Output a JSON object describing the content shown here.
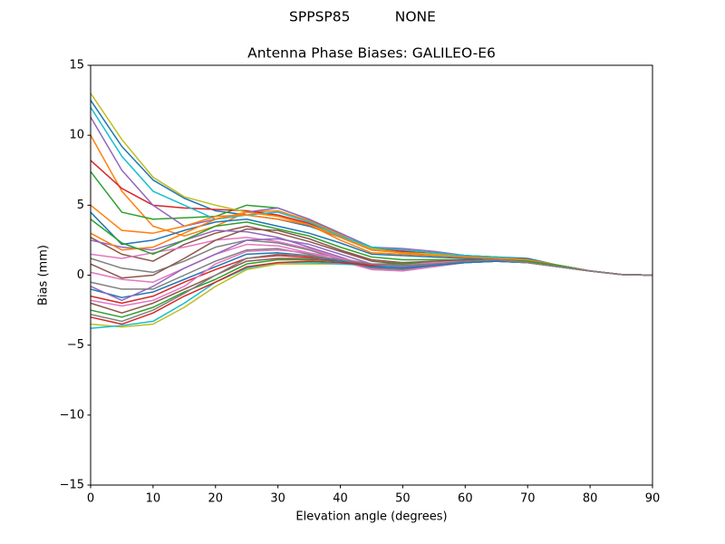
{
  "chart_data": {
    "type": "line",
    "suptitle": "SPPSP85          NONE",
    "title": "Antenna Phase Biases: GALILEO-E6",
    "x_label": "Elevation angle (degrees)",
    "y_label": "Bias (mm)",
    "x": [
      0,
      5,
      10,
      15,
      20,
      25,
      30,
      35,
      40,
      45,
      50,
      55,
      60,
      65,
      70,
      75,
      80,
      85,
      90
    ],
    "xlim": [
      0,
      90
    ],
    "xticks": [
      0,
      10,
      20,
      30,
      40,
      50,
      60,
      70,
      80,
      90
    ],
    "ylim": [
      -15,
      15
    ],
    "yticks": [
      {
        "value": -15,
        "label": "−15"
      },
      {
        "value": -10,
        "label": "−10"
      },
      {
        "value": -5,
        "label": "−5"
      },
      0,
      5,
      10,
      15
    ],
    "grid": false,
    "series": [
      {
        "color": "#1f77b4",
        "values": [
          12.5,
          9.2,
          6.8,
          5.5,
          4.6,
          4.3,
          4,
          3.5,
          2.7,
          1.8,
          1.7,
          1.6,
          1.4,
          1.3,
          1.2,
          0.7,
          0.3,
          0.05,
          0
        ]
      },
      {
        "color": "#ff7f0e",
        "values": [
          10,
          6,
          3.5,
          2.8,
          3.5,
          4.5,
          4.6,
          3.9,
          2.9,
          1.8,
          1.6,
          1.5,
          1.3,
          1.2,
          1.1,
          0.7,
          0.3,
          0.05,
          0
        ]
      },
      {
        "color": "#2ca02c",
        "values": [
          7.4,
          4.5,
          4,
          4.1,
          4.2,
          5,
          4.8,
          4,
          3,
          2,
          1.8,
          1.6,
          1.4,
          1.3,
          1.1,
          0.7,
          0.3,
          0.05,
          0
        ]
      },
      {
        "color": "#d62728",
        "values": [
          8.2,
          6.2,
          5,
          4.8,
          4.7,
          4.6,
          4.3,
          3.7,
          2.8,
          1.9,
          1.7,
          1.6,
          1.4,
          1.2,
          1.1,
          0.7,
          0.3,
          0.05,
          0
        ]
      },
      {
        "color": "#9467bd",
        "values": [
          11.3,
          7.5,
          5,
          3.5,
          4,
          4.5,
          4.8,
          4,
          3,
          2,
          1.9,
          1.7,
          1.4,
          1.2,
          1.1,
          0.7,
          0.3,
          0.05,
          0
        ]
      },
      {
        "color": "#8c564b",
        "values": [
          2.7,
          1.5,
          1,
          2.2,
          3,
          3.5,
          3,
          2.4,
          1.7,
          1,
          0.8,
          0.9,
          1,
          1,
          0.9,
          0.7,
          0.3,
          0.05,
          0
        ]
      },
      {
        "color": "#e377c2",
        "values": [
          1.5,
          1.2,
          1.6,
          2,
          2.5,
          2.7,
          2.4,
          1.9,
          1.2,
          0.6,
          0.5,
          0.7,
          0.9,
          1,
          0.9,
          0.6,
          0.3,
          0.05,
          0
        ]
      },
      {
        "color": "#7f7f7f",
        "values": [
          -0.5,
          -1,
          -1,
          0,
          1,
          1.8,
          1.9,
          1.5,
          1,
          0.5,
          0.4,
          0.7,
          0.9,
          1,
          0.9,
          0.6,
          0.3,
          0.05,
          0
        ]
      },
      {
        "color": "#bcbd22",
        "values": [
          13,
          9.7,
          7,
          5.6,
          5,
          4.5,
          4.2,
          3.6,
          2.8,
          1.9,
          1.6,
          1.5,
          1.3,
          1.2,
          1.1,
          0.7,
          0.3,
          0.05,
          0
        ]
      },
      {
        "color": "#17becf",
        "values": [
          12,
          8.5,
          6,
          5,
          4,
          4.3,
          4.5,
          3.8,
          2.8,
          2,
          1.8,
          1.6,
          1.4,
          1.3,
          1.1,
          0.7,
          0.3,
          0.05,
          0
        ]
      },
      {
        "color": "#1f77b4",
        "values": [
          4.5,
          2.2,
          2.5,
          3.2,
          3.8,
          4,
          3.5,
          3,
          2.3,
          1.5,
          1.4,
          1.3,
          1.2,
          1.1,
          1.0,
          0.7,
          0.3,
          0.05,
          0
        ]
      },
      {
        "color": "#ff7f0e",
        "values": [
          5,
          3.2,
          3,
          3.5,
          4.2,
          4.3,
          4,
          3.6,
          2.7,
          1.8,
          1.6,
          1.4,
          1.3,
          1.2,
          1.1,
          0.7,
          0.3,
          0.05,
          0
        ]
      },
      {
        "color": "#2ca02c",
        "values": [
          -2.5,
          -3,
          -2.3,
          -1.2,
          -0.3,
          0.8,
          1.1,
          1.1,
          1,
          0.8,
          0.8,
          0.9,
          1,
          1.1,
          0.9,
          0.6,
          0.3,
          0.05,
          0
        ]
      },
      {
        "color": "#d62728",
        "values": [
          -1.5,
          -2,
          -1.5,
          -0.5,
          0.4,
          1.2,
          1.4,
          1.3,
          1.1,
          0.7,
          0.6,
          0.8,
          1,
          1.1,
          0.9,
          0.6,
          0.3,
          0.05,
          0
        ]
      },
      {
        "color": "#9467bd",
        "values": [
          2.5,
          2,
          1.8,
          2.5,
          3.2,
          3.1,
          2.7,
          2,
          1.3,
          0.6,
          0.5,
          0.8,
          1,
          1,
          0.9,
          0.6,
          0.3,
          0.05,
          0
        ]
      },
      {
        "color": "#8c564b",
        "values": [
          -2,
          -2.7,
          -2,
          -1,
          0,
          1,
          1.2,
          1.2,
          1,
          0.8,
          0.7,
          0.8,
          1,
          1.1,
          0.9,
          0.6,
          0.3,
          0.05,
          0
        ]
      },
      {
        "color": "#e377c2",
        "values": [
          0.2,
          -0.3,
          -0.5,
          0.5,
          1.5,
          2.2,
          2.1,
          1.6,
          1,
          0.4,
          0.3,
          0.6,
          0.9,
          1,
          0.9,
          0.6,
          0.3,
          0.05,
          0
        ]
      },
      {
        "color": "#7f7f7f",
        "values": [
          1.2,
          0.5,
          0.2,
          1,
          2,
          2.5,
          2.3,
          1.8,
          1.1,
          0.5,
          0.4,
          0.7,
          0.9,
          1,
          0.9,
          0.6,
          0.3,
          0.05,
          0
        ]
      },
      {
        "color": "#bcbd22",
        "values": [
          -3.5,
          -3.7,
          -3.5,
          -2.3,
          -0.8,
          0.4,
          0.8,
          0.8,
          0.8,
          0.7,
          0.7,
          0.8,
          0.9,
          1,
          0.9,
          0.6,
          0.3,
          0.05,
          0
        ]
      },
      {
        "color": "#17becf",
        "values": [
          -3.8,
          -3.6,
          -3.3,
          -2,
          -0.5,
          0.5,
          0.9,
          0.9,
          0.8,
          0.7,
          0.6,
          0.8,
          0.9,
          1,
          0.9,
          0.6,
          0.3,
          0.05,
          0
        ]
      },
      {
        "color": "#1f77b4",
        "values": [
          -1,
          -1.6,
          -1.2,
          -0.3,
          0.6,
          1.5,
          1.6,
          1.4,
          1,
          0.6,
          0.5,
          0.7,
          0.9,
          1,
          0.9,
          0.6,
          0.3,
          0.05,
          0
        ]
      },
      {
        "color": "#ff7f0e",
        "values": [
          3,
          1.8,
          2,
          3,
          4,
          4.5,
          4.2,
          3.6,
          2.5,
          1.6,
          1.5,
          1.4,
          1.3,
          1.2,
          1.1,
          0.7,
          0.3,
          0.05,
          0
        ]
      },
      {
        "color": "#2ca02c",
        "values": [
          4,
          2.3,
          1.5,
          2.5,
          3.5,
          3.8,
          3.3,
          2.8,
          2,
          1.3,
          1.1,
          1.1,
          1.1,
          1.1,
          1,
          0.7,
          0.3,
          0.05,
          0
        ]
      },
      {
        "color": "#d62728",
        "values": [
          -3,
          -3.5,
          -2.7,
          -1.5,
          -0.5,
          0.6,
          0.9,
          1,
          0.9,
          0.7,
          0.7,
          0.8,
          1,
          1.1,
          0.9,
          0.6,
          0.3,
          0.05,
          0
        ]
      },
      {
        "color": "#9467bd",
        "values": [
          -0.8,
          -1.8,
          -0.8,
          0.5,
          1.5,
          2.5,
          2.6,
          2.2,
          1.5,
          0.8,
          0.6,
          0.8,
          1,
          1.1,
          0.9,
          0.6,
          0.3,
          0.05,
          0
        ]
      },
      {
        "color": "#8c564b",
        "values": [
          0.8,
          -0.2,
          0,
          1.2,
          2.5,
          3.3,
          3.2,
          2.6,
          1.8,
          1.1,
          0.9,
          1,
          1.1,
          1.1,
          0.9,
          0.6,
          0.3,
          0.05,
          0
        ]
      },
      {
        "color": "#e377c2",
        "values": [
          -1.8,
          -2.2,
          -1.8,
          -0.8,
          0.8,
          1.7,
          1.8,
          1.6,
          1.2,
          0.8,
          0.7,
          0.9,
          1,
          1.1,
          0.9,
          0.6,
          0.3,
          0.05,
          0
        ]
      },
      {
        "color": "#7f7f7f",
        "values": [
          -2.8,
          -3.3,
          -2.5,
          -1.3,
          0,
          1.2,
          1.5,
          1.4,
          1.1,
          0.8,
          0.7,
          0.8,
          1,
          1.1,
          0.9,
          0.6,
          0.3,
          0.05,
          0
        ]
      }
    ]
  }
}
